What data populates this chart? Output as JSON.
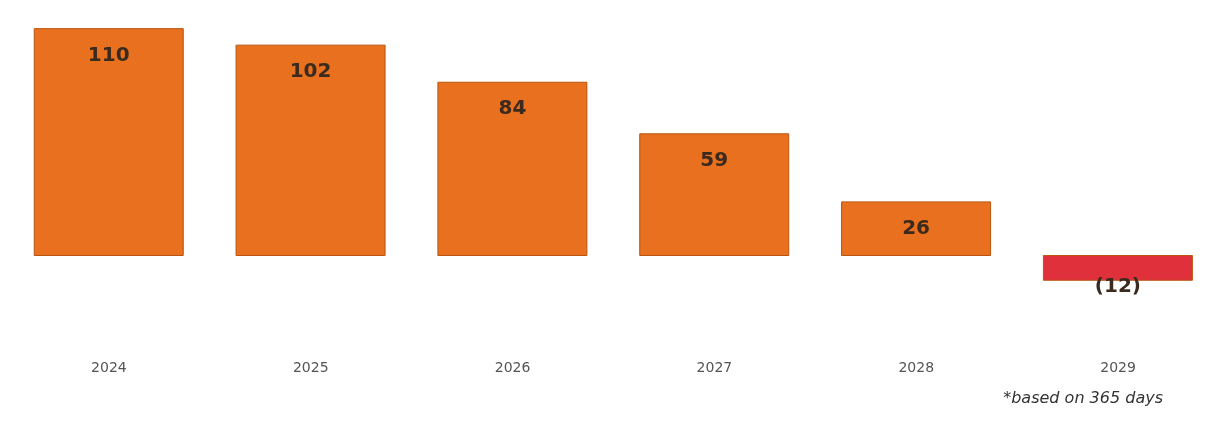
{
  "chart_data": {
    "type": "bar",
    "categories": [
      "2024",
      "2025",
      "2026",
      "2027",
      "2028",
      "2029"
    ],
    "values": [
      110,
      102,
      84,
      59,
      26,
      -12
    ],
    "colors": [
      "#e8701e",
      "#e8701e",
      "#e8701e",
      "#e8701e",
      "#e8701e",
      "#e0303c"
    ],
    "value_labels": [
      "110",
      "102",
      "84",
      "59",
      "26",
      "(12)"
    ],
    "grid": false,
    "legend": false,
    "annotations": [
      "*based on 365 days"
    ]
  }
}
